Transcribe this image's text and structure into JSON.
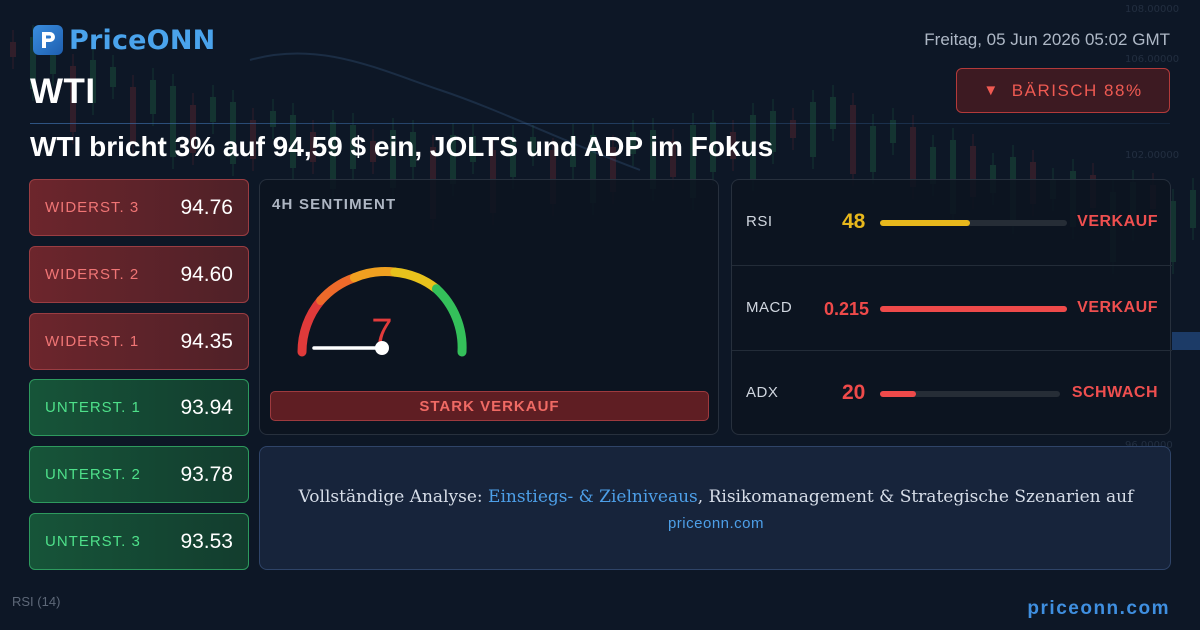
{
  "header": {
    "logo_text": "PriceONN",
    "symbol": "WTI",
    "datetime": "Freitag, 05 Jun 2026 05:02 GMT",
    "bias_label": "BÄRISCH 88%",
    "bias_arrow": "▼",
    "headline": "WTI bricht 3% auf 94,59 $ ein, JOLTS und ADP im Fokus"
  },
  "levels": [
    {
      "label": "WIDERST. 3",
      "value": "94.76",
      "kind": "resistance"
    },
    {
      "label": "WIDERST. 2",
      "value": "94.60",
      "kind": "resistance"
    },
    {
      "label": "WIDERST. 1",
      "value": "94.35",
      "kind": "resistance"
    },
    {
      "label": "UNTERST. 1",
      "value": "93.94",
      "kind": "support"
    },
    {
      "label": "UNTERST. 2",
      "value": "93.78",
      "kind": "support"
    },
    {
      "label": "UNTERST. 3",
      "value": "93.53",
      "kind": "support"
    }
  ],
  "sentiment": {
    "title": "4H SENTIMENT",
    "score": "7",
    "score_fraction": 0.07,
    "label": "STARK VERKAUF"
  },
  "indicators": [
    {
      "name": "RSI",
      "value": "48",
      "fill": 0.48,
      "signal": "VERKAUF",
      "color": "#e8b81c"
    },
    {
      "name": "MACD",
      "value": "0.215",
      "fill": 1.0,
      "signal": "VERKAUF",
      "color": "#ef4a4a"
    },
    {
      "name": "ADX",
      "value": "20",
      "fill": 0.2,
      "signal": "SCHWACH",
      "color": "#ef4a4a"
    }
  ],
  "cta": {
    "prefix": "Vollständige Analyse: ",
    "link": "Einstiegs- & Zielniveaus",
    "suffix": ", Risikomanagement & Strategische Szenarien auf",
    "site": "priceonn.com"
  },
  "footer": {
    "rsi_text": "RSI  (14)",
    "site": "priceonn.com"
  },
  "colors": {
    "background": "#0d1726",
    "bearish": "#ef4f4f",
    "bullish": "#4ee08a",
    "accent": "#4d9fe8"
  }
}
